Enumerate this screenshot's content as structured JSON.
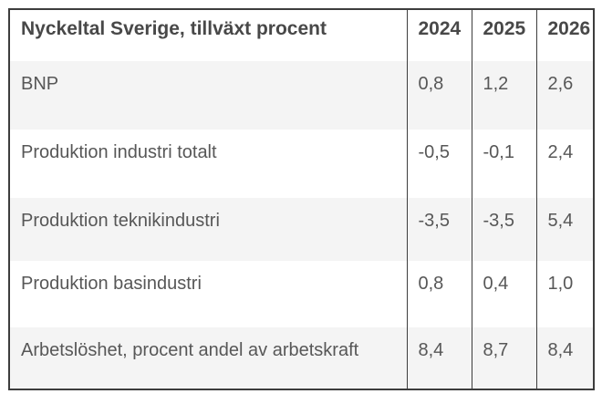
{
  "table": {
    "title": "Nyckeltal Sverige, tillväxt procent",
    "year_headers": [
      "2024",
      "2025",
      "2026"
    ],
    "rows": [
      {
        "label": "BNP",
        "values": [
          "0,8",
          "1,2",
          "2,6"
        ]
      },
      {
        "label": "Produktion industri totalt",
        "values": [
          "-0,5",
          "-0,1",
          "2,4"
        ]
      },
      {
        "label": "Produktion teknikindustri",
        "values": [
          "-3,5",
          "-3,5",
          "5,4"
        ]
      },
      {
        "label": "Produktion basindustri",
        "values": [
          "0,8",
          "0,4",
          "1,0"
        ]
      },
      {
        "label": "Arbetslöshet, procent andel av arbetskraft",
        "values": [
          "8,4",
          "8,7",
          "8,4"
        ]
      }
    ],
    "colors": {
      "border": "#3d3d3d",
      "header_text": "#484848",
      "body_text": "#575757",
      "zebra_row_bg": "#f4f4f4",
      "base_bg": "#ffffff"
    }
  },
  "chart_data": {
    "type": "table",
    "title": "Nyckeltal Sverige, tillväxt procent",
    "columns": [
      "2024",
      "2025",
      "2026"
    ],
    "row_labels": [
      "BNP",
      "Produktion industri totalt",
      "Produktion teknikindustri",
      "Produktion basindustri",
      "Arbetslöshet, procent andel av arbetskraft"
    ],
    "series": [
      {
        "name": "2024",
        "values": [
          0.8,
          -0.5,
          -3.5,
          0.8,
          8.4
        ]
      },
      {
        "name": "2025",
        "values": [
          1.2,
          -0.1,
          -3.5,
          0.4,
          8.7
        ]
      },
      {
        "name": "2026",
        "values": [
          2.6,
          2.4,
          5.4,
          1.0,
          8.4
        ]
      }
    ],
    "layout": {
      "zebra_striping": true,
      "column_dividers": true,
      "row_dividers": false
    }
  }
}
